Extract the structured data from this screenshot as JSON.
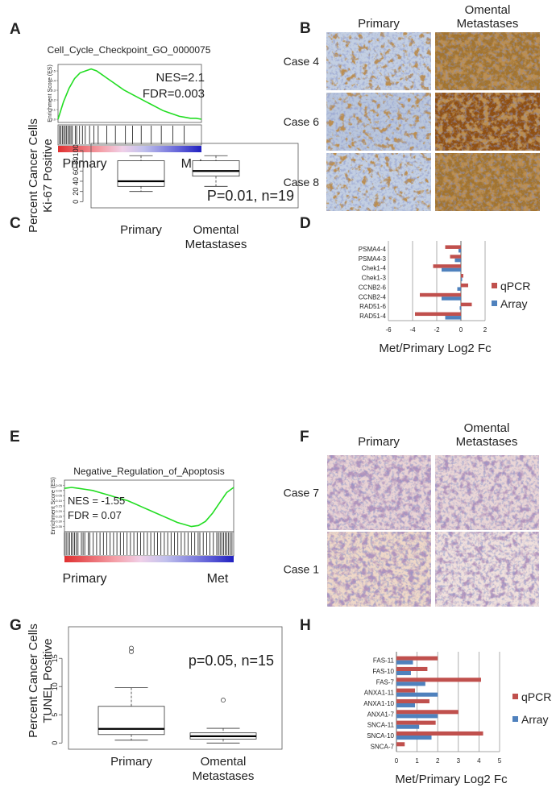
{
  "chart_data": [
    {
      "type": "gsea",
      "panel": "A",
      "title": "Cell_Cycle_Checkpoint_GO_0000075",
      "ylabel": "Enrichment Score (ES)",
      "ylim": [
        -0.033,
        0.567
      ],
      "xlim": [
        0,
        100
      ],
      "yticks": [
        {
          "value": 0,
          "label": "0.0"
        },
        {
          "value": 0.1,
          "label": "0.1"
        },
        {
          "value": 0.2,
          "label": "0.2"
        },
        {
          "value": 0.3,
          "label": "0.3"
        },
        {
          "value": 0.4,
          "label": "0.4"
        },
        {
          "value": 0.5,
          "label": "0.5"
        }
      ],
      "values": [
        0,
        0.18,
        0.32,
        0.42,
        0.48,
        0.5,
        0.52,
        0.5,
        0.46,
        0.42,
        0.38,
        0.34,
        0.3,
        0.27,
        0.24,
        0.21,
        0.18,
        0.15,
        0.12,
        0.09,
        0.07,
        0.05,
        0.03,
        0.02,
        0.01,
        0.01,
        0
      ],
      "hits": [
        1,
        2,
        3,
        4,
        5,
        6,
        7,
        8,
        9,
        10,
        12,
        13,
        15,
        17,
        19,
        22,
        25,
        28,
        34,
        40,
        47,
        52,
        58,
        65,
        72,
        80,
        88
      ],
      "annotations": [
        "NES=2.1",
        "FDR=0.003"
      ],
      "x_labels": [
        "Primary",
        "Met"
      ],
      "color": "#22dd22"
    },
    {
      "type": "image-grid",
      "panel": "B",
      "columns": [
        "Primary",
        [
          "Omental",
          "Metastases"
        ]
      ],
      "rows": [
        "Case 4",
        "Case 6",
        "Case 8"
      ]
    },
    {
      "type": "box",
      "panel": "C",
      "ylabel": [
        "Percent Cancer Cells",
        "Ki-67 Positive"
      ],
      "categories": [
        "Primary",
        [
          "Omental",
          "Metastases"
        ]
      ],
      "boxes": [
        {
          "min": 20,
          "q1": 30,
          "median": 40,
          "q3": 80,
          "max": 90,
          "outliers": []
        },
        {
          "min": 30,
          "q1": 50,
          "median": 60,
          "q3": 80,
          "max": 90,
          "outliers": []
        }
      ],
      "ylim": [
        -12,
        114
      ],
      "yticks": [
        0,
        20,
        40,
        60,
        80,
        100
      ],
      "annotation": "P=0.01, n=19"
    },
    {
      "type": "hbar",
      "panel": "D",
      "categories": [
        "PSMA4-4",
        "PSMA4-3",
        "Chek1-4",
        "Chek1-3",
        "CCNB2-6",
        "CCNB2-4",
        "RAD51-6",
        "RAD51-4"
      ],
      "series": [
        {
          "name": "qPCR",
          "color": "#c0504d",
          "values": [
            -1.3,
            -0.9,
            -2.3,
            0.2,
            0.6,
            -3.4,
            0.9,
            -3.8
          ]
        },
        {
          "name": "Array",
          "color": "#4f81bd",
          "values": [
            -0.2,
            -0.5,
            -1.6,
            0.1,
            -0.3,
            -1.6,
            -0.1,
            -1.3
          ]
        }
      ],
      "xlim": [
        -6,
        2
      ],
      "xticks": [
        -6,
        -4,
        -2,
        0,
        2
      ],
      "xlabel": "Met/Primary Log2 Fc",
      "grid": true,
      "legend": "right"
    },
    {
      "type": "gsea",
      "panel": "E",
      "title": "Negative_Regulation_of_Apoptosis",
      "ylabel": "Enrichment Score (ES)",
      "ylim": [
        -0.4,
        0.1
      ],
      "xlim": [
        0,
        100
      ],
      "yticks": [
        {
          "value": 0.05,
          "label": "0.05"
        },
        {
          "value": 0,
          "label": "0.00"
        },
        {
          "value": -0.05,
          "label": "-0.05"
        },
        {
          "value": -0.1,
          "label": "-0.10"
        },
        {
          "value": -0.15,
          "label": "-0.15"
        },
        {
          "value": -0.2,
          "label": "-0.20"
        },
        {
          "value": -0.25,
          "label": "-0.25"
        },
        {
          "value": -0.3,
          "label": "-0.30"
        },
        {
          "value": -0.35,
          "label": "-0.35"
        }
      ],
      "values": [
        0.02,
        0.03,
        0.02,
        0.01,
        0,
        -0.02,
        -0.04,
        -0.06,
        -0.08,
        -0.1,
        -0.13,
        -0.16,
        -0.19,
        -0.22,
        -0.25,
        -0.28,
        -0.31,
        -0.33,
        -0.35,
        -0.34,
        -0.3,
        -0.22,
        -0.12,
        -0.02,
        0.03
      ],
      "hits": [
        0,
        1,
        2,
        3,
        4,
        5,
        6,
        7,
        8,
        10,
        11,
        12,
        14,
        15,
        17,
        19,
        21,
        23,
        25,
        27,
        29,
        31,
        33,
        35,
        37,
        39,
        41,
        43,
        45,
        47,
        49,
        51,
        53,
        55,
        57,
        59,
        61,
        63,
        65,
        67,
        69,
        71,
        73,
        75,
        77,
        79,
        80,
        82,
        84,
        86,
        88,
        90,
        91,
        92,
        93,
        94,
        95,
        96,
        97,
        98,
        99
      ],
      "annotations": [
        "NES = -1.55",
        "FDR = 0.07"
      ],
      "x_labels": [
        "Primary",
        "Met"
      ],
      "color": "#22dd22"
    },
    {
      "type": "image-grid",
      "panel": "F",
      "columns": [
        "Primary",
        [
          "Omental",
          "Metastases"
        ]
      ],
      "rows": [
        "Case 7",
        "Case 1"
      ]
    },
    {
      "type": "box",
      "panel": "G",
      "ylabel": [
        "Percent Cancer Cells",
        "TUNEL Positive"
      ],
      "categories": [
        "Primary",
        [
          "Omental",
          "Metastases"
        ]
      ],
      "boxes": [
        {
          "min": 0.5,
          "q1": 1.5,
          "median": 2.5,
          "q3": 6.5,
          "max": 9.8,
          "outliers": [
            16.2,
            16.8
          ]
        },
        {
          "min": 0,
          "q1": 0.7,
          "median": 1.2,
          "q3": 1.8,
          "max": 2.6,
          "outliers": [
            7.6
          ]
        }
      ],
      "ylim": [
        -1.1,
        20.6
      ],
      "yticks": [
        0,
        5,
        10,
        15
      ],
      "annotation": "p=0.05, n=15"
    },
    {
      "type": "hbar",
      "panel": "H",
      "categories": [
        "FAS-11",
        "FAS-10",
        "FAS-7",
        "ANXA1-11",
        "ANXA1-10",
        "ANXA1-7",
        "SNCA-11",
        "SNCA-10",
        "SNCA-7"
      ],
      "series": [
        {
          "name": "qPCR",
          "color": "#c0504d",
          "values": [
            2.0,
            1.5,
            4.1,
            0.9,
            1.6,
            3.0,
            1.9,
            4.2,
            0.4
          ]
        },
        {
          "name": "Array",
          "color": "#4f81bd",
          "values": [
            0.8,
            0.7,
            1.4,
            2.0,
            0.9,
            2.0,
            1.1,
            1.7,
            0
          ]
        }
      ],
      "xlim": [
        0,
        5
      ],
      "xticks": [
        0,
        1,
        2,
        3,
        4,
        5
      ],
      "xlabel": "Met/Primary Log2 Fc",
      "grid": true,
      "legend": "right"
    }
  ]
}
